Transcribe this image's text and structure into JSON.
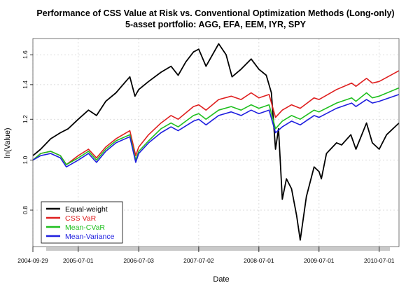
{
  "chart_data": {
    "type": "line",
    "title": "Performance of CSS Value at Risk vs. Conventional Optimization Methods (Long-only)",
    "subtitle": "5-asset portfolio: AGG, EFA, EEM, IYR, SPY",
    "xlabel": "Date",
    "ylabel": "ln(Value)",
    "x_ticks": [
      "2004-09-29",
      "2005-07-01",
      "2006-07-03",
      "2007-07-02",
      "2008-07-01",
      "2009-07-01",
      "2010-07-01"
    ],
    "y_ticks": [
      "0.8",
      "1.0",
      "1.2",
      "1.4",
      "1.6"
    ],
    "y_scale": "log",
    "xlim": [
      "2004-09-29",
      "2010-10-29"
    ],
    "ylim": [
      0.68,
      1.72
    ],
    "grid": true,
    "legend_position": "bottom-left",
    "series": [
      {
        "name": "Equal-weight",
        "color": "#000000",
        "points": [
          [
            "2004-09-29",
            1.02
          ],
          [
            "2004-11-15",
            1.05
          ],
          [
            "2005-01-15",
            1.1
          ],
          [
            "2005-03-15",
            1.13
          ],
          [
            "2005-05-01",
            1.15
          ],
          [
            "2005-07-01",
            1.2
          ],
          [
            "2005-09-01",
            1.25
          ],
          [
            "2005-10-20",
            1.22
          ],
          [
            "2005-12-15",
            1.3
          ],
          [
            "2006-02-15",
            1.35
          ],
          [
            "2006-04-15",
            1.42
          ],
          [
            "2006-05-10",
            1.45
          ],
          [
            "2006-06-10",
            1.33
          ],
          [
            "2006-07-03",
            1.37
          ],
          [
            "2006-09-01",
            1.42
          ],
          [
            "2006-11-15",
            1.48
          ],
          [
            "2007-01-15",
            1.52
          ],
          [
            "2007-02-27",
            1.46
          ],
          [
            "2007-04-15",
            1.55
          ],
          [
            "2007-05-31",
            1.62
          ],
          [
            "2007-07-02",
            1.64
          ],
          [
            "2007-08-15",
            1.52
          ],
          [
            "2007-10-31",
            1.68
          ],
          [
            "2007-12-15",
            1.6
          ],
          [
            "2008-01-20",
            1.45
          ],
          [
            "2008-03-15",
            1.5
          ],
          [
            "2008-05-15",
            1.57
          ],
          [
            "2008-07-01",
            1.5
          ],
          [
            "2008-08-15",
            1.46
          ],
          [
            "2008-09-15",
            1.35
          ],
          [
            "2008-10-10",
            1.05
          ],
          [
            "2008-10-28",
            1.15
          ],
          [
            "2008-11-20",
            0.84
          ],
          [
            "2008-12-15",
            0.92
          ],
          [
            "2009-01-15",
            0.88
          ],
          [
            "2009-02-15",
            0.78
          ],
          [
            "2009-03-09",
            0.7
          ],
          [
            "2009-04-15",
            0.85
          ],
          [
            "2009-06-01",
            0.97
          ],
          [
            "2009-07-01",
            0.95
          ],
          [
            "2009-07-15",
            0.92
          ],
          [
            "2009-08-15",
            1.03
          ],
          [
            "2009-10-15",
            1.08
          ],
          [
            "2009-11-15",
            1.07
          ],
          [
            "2010-01-10",
            1.12
          ],
          [
            "2010-02-10",
            1.05
          ],
          [
            "2010-04-15",
            1.18
          ],
          [
            "2010-05-20",
            1.08
          ],
          [
            "2010-07-01",
            1.05
          ],
          [
            "2010-08-15",
            1.12
          ],
          [
            "2010-10-29",
            1.18
          ]
        ]
      },
      {
        "name": "CSS VaR",
        "color": "#df1f1f",
        "points": [
          [
            "2004-09-29",
            1.0
          ],
          [
            "2004-11-15",
            1.03
          ],
          [
            "2005-01-15",
            1.04
          ],
          [
            "2005-03-15",
            1.02
          ],
          [
            "2005-04-20",
            0.98
          ],
          [
            "2005-07-01",
            1.02
          ],
          [
            "2005-09-01",
            1.05
          ],
          [
            "2005-10-20",
            1.01
          ],
          [
            "2005-12-15",
            1.06
          ],
          [
            "2006-02-15",
            1.1
          ],
          [
            "2006-05-10",
            1.14
          ],
          [
            "2006-06-15",
            1.02
          ],
          [
            "2006-07-03",
            1.06
          ],
          [
            "2006-09-01",
            1.12
          ],
          [
            "2006-11-15",
            1.18
          ],
          [
            "2007-01-15",
            1.22
          ],
          [
            "2007-02-27",
            1.2
          ],
          [
            "2007-05-31",
            1.27
          ],
          [
            "2007-07-02",
            1.28
          ],
          [
            "2007-08-15",
            1.25
          ],
          [
            "2007-10-31",
            1.31
          ],
          [
            "2008-01-15",
            1.33
          ],
          [
            "2008-03-15",
            1.31
          ],
          [
            "2008-05-15",
            1.35
          ],
          [
            "2008-07-01",
            1.32
          ],
          [
            "2008-09-01",
            1.34
          ],
          [
            "2008-10-10",
            1.21
          ],
          [
            "2008-11-20",
            1.25
          ],
          [
            "2009-01-15",
            1.28
          ],
          [
            "2009-03-09",
            1.26
          ],
          [
            "2009-06-01",
            1.32
          ],
          [
            "2009-07-01",
            1.31
          ],
          [
            "2009-10-15",
            1.37
          ],
          [
            "2010-01-15",
            1.41
          ],
          [
            "2010-02-10",
            1.39
          ],
          [
            "2010-04-15",
            1.44
          ],
          [
            "2010-05-20",
            1.41
          ],
          [
            "2010-07-01",
            1.42
          ],
          [
            "2010-10-29",
            1.49
          ]
        ]
      },
      {
        "name": "Mean-CVaR",
        "color": "#1fbf1f",
        "points": [
          [
            "2004-09-29",
            1.0
          ],
          [
            "2004-11-15",
            1.03
          ],
          [
            "2005-01-15",
            1.04
          ],
          [
            "2005-03-15",
            1.02
          ],
          [
            "2005-04-20",
            0.98
          ],
          [
            "2005-07-01",
            1.01
          ],
          [
            "2005-09-01",
            1.04
          ],
          [
            "2005-10-20",
            1.0
          ],
          [
            "2005-12-15",
            1.05
          ],
          [
            "2006-02-15",
            1.09
          ],
          [
            "2006-05-10",
            1.12
          ],
          [
            "2006-06-15",
            1.0
          ],
          [
            "2006-07-03",
            1.04
          ],
          [
            "2006-09-01",
            1.09
          ],
          [
            "2006-11-15",
            1.15
          ],
          [
            "2007-01-15",
            1.18
          ],
          [
            "2007-02-27",
            1.16
          ],
          [
            "2007-05-31",
            1.22
          ],
          [
            "2007-07-02",
            1.23
          ],
          [
            "2007-08-15",
            1.2
          ],
          [
            "2007-10-31",
            1.25
          ],
          [
            "2008-01-15",
            1.27
          ],
          [
            "2008-03-15",
            1.25
          ],
          [
            "2008-05-15",
            1.28
          ],
          [
            "2008-07-01",
            1.26
          ],
          [
            "2008-09-01",
            1.28
          ],
          [
            "2008-10-10",
            1.15
          ],
          [
            "2008-11-20",
            1.19
          ],
          [
            "2009-01-15",
            1.22
          ],
          [
            "2009-03-09",
            1.2
          ],
          [
            "2009-06-01",
            1.25
          ],
          [
            "2009-07-01",
            1.24
          ],
          [
            "2009-10-15",
            1.29
          ],
          [
            "2010-01-15",
            1.32
          ],
          [
            "2010-02-10",
            1.3
          ],
          [
            "2010-04-15",
            1.35
          ],
          [
            "2010-05-20",
            1.32
          ],
          [
            "2010-07-01",
            1.33
          ],
          [
            "2010-10-29",
            1.38
          ]
        ]
      },
      {
        "name": "Mean-Variance",
        "color": "#1f1fdf",
        "points": [
          [
            "2004-09-29",
            1.0
          ],
          [
            "2004-11-15",
            1.02
          ],
          [
            "2005-01-15",
            1.03
          ],
          [
            "2005-03-15",
            1.01
          ],
          [
            "2005-04-20",
            0.97
          ],
          [
            "2005-07-01",
            1.0
          ],
          [
            "2005-09-01",
            1.03
          ],
          [
            "2005-10-20",
            0.99
          ],
          [
            "2005-12-15",
            1.04
          ],
          [
            "2006-02-15",
            1.08
          ],
          [
            "2006-05-10",
            1.11
          ],
          [
            "2006-06-15",
            0.99
          ],
          [
            "2006-07-03",
            1.03
          ],
          [
            "2006-09-01",
            1.08
          ],
          [
            "2006-11-15",
            1.13
          ],
          [
            "2007-01-15",
            1.16
          ],
          [
            "2007-02-27",
            1.14
          ],
          [
            "2007-05-31",
            1.19
          ],
          [
            "2007-07-02",
            1.2
          ],
          [
            "2007-08-15",
            1.17
          ],
          [
            "2007-10-31",
            1.22
          ],
          [
            "2008-01-15",
            1.24
          ],
          [
            "2008-03-15",
            1.22
          ],
          [
            "2008-05-15",
            1.25
          ],
          [
            "2008-07-01",
            1.23
          ],
          [
            "2008-09-01",
            1.25
          ],
          [
            "2008-10-10",
            1.13
          ],
          [
            "2008-11-20",
            1.16
          ],
          [
            "2009-01-15",
            1.19
          ],
          [
            "2009-03-09",
            1.17
          ],
          [
            "2009-06-01",
            1.22
          ],
          [
            "2009-07-01",
            1.21
          ],
          [
            "2009-10-15",
            1.26
          ],
          [
            "2010-01-15",
            1.29
          ],
          [
            "2010-02-10",
            1.27
          ],
          [
            "2010-04-15",
            1.31
          ],
          [
            "2010-05-20",
            1.29
          ],
          [
            "2010-07-01",
            1.3
          ],
          [
            "2010-10-29",
            1.34
          ]
        ]
      }
    ]
  }
}
